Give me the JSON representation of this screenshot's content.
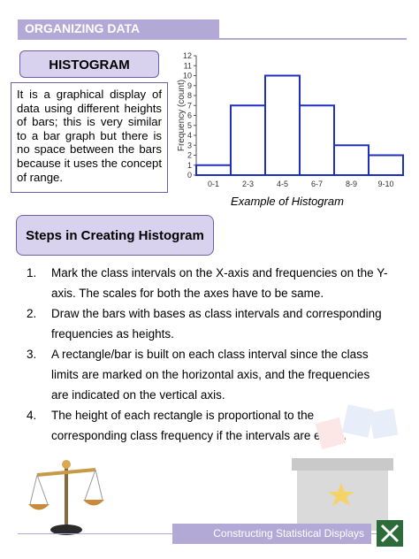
{
  "header": {
    "title": "ORGANIZING DATA"
  },
  "definition": {
    "title": "HISTOGRAM",
    "text": "It is a graphical display of data using different heights of bars; this is very similar to a bar graph but there is no space between the bars because it uses the concept of range."
  },
  "example": {
    "caption": "Example of Histogram",
    "chart_data": {
      "type": "histogram",
      "y_label": "Frequency (count)",
      "categories": [
        "0-1",
        "2-3",
        "4-5",
        "6-7",
        "8-9",
        "9-10"
      ],
      "values": [
        1,
        7,
        10,
        7,
        3,
        2
      ],
      "color": "#1f2fbf",
      "ylim": [
        0,
        12
      ],
      "yticks": [
        0,
        1,
        2,
        3,
        4,
        5,
        6,
        7,
        8,
        9,
        10,
        11,
        12
      ]
    }
  },
  "steps": {
    "title": "Steps in Creating Histogram",
    "items": [
      {
        "number": "1.",
        "text": "Mark the class intervals on the X-axis and frequencies on the Y-axis. The scales for both the axes have to be same."
      },
      {
        "number": "2.",
        "text": "Draw the bars with bases as class intervals and corresponding frequencies as heights."
      },
      {
        "number": "3.",
        "text": "A rectangle/bar is built on each class interval since the class limits are marked on the horizontal axis, and the frequencies are indicated on the vertical axis."
      },
      {
        "number": "4.",
        "text": "The height of each rectangle is proportional to the corresponding class frequency if the intervals are equal."
      }
    ]
  },
  "footer": {
    "title": "Constructing Statistical Displays"
  }
}
